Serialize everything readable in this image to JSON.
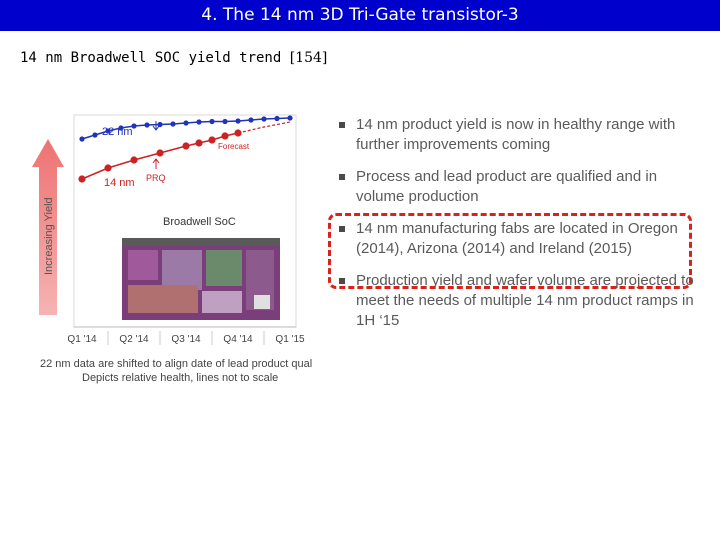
{
  "header": {
    "title": "4. The 14 nm 3D Tri-Gate transistor-3",
    "subtitle": "14 nm Broadwell SOC yield trend",
    "reference": "[154]"
  },
  "chart_data": {
    "type": "line",
    "title": "",
    "xlabel": "",
    "ylabel": "Increasing Yield",
    "categories": [
      "Q1 '14",
      "Q2 '14",
      "Q3 '14",
      "Q4 '14",
      "Q1 '15"
    ],
    "series": [
      {
        "name": "22 nm",
        "color": "#2233bb",
        "x": [
          0.0,
          0.25,
          0.5,
          0.75,
          1.0,
          1.25,
          1.5,
          1.75,
          2.0,
          2.25,
          2.5,
          2.75,
          3.0,
          3.25,
          3.5,
          3.75,
          4.0
        ],
        "y": [
          76,
          80,
          84,
          87,
          89,
          90,
          90.5,
          91,
          92,
          93,
          93.5,
          93.5,
          94,
          95,
          96,
          96.5,
          97
        ]
      },
      {
        "name": "14 nm",
        "color": "#cc2222",
        "x": [
          0.0,
          0.5,
          1.0,
          1.5,
          2.0,
          2.25,
          2.5,
          2.75,
          3.0
        ],
        "y": [
          36,
          47,
          55,
          62,
          69,
          72,
          75,
          79,
          82
        ]
      },
      {
        "name": "Forecast",
        "color": "#cc2222",
        "dashed": true,
        "x": [
          3.0,
          3.5,
          4.0
        ],
        "y": [
          82,
          88,
          93
        ]
      }
    ],
    "ylim": [
      0,
      100
    ],
    "annotations": {
      "forecast": "Forecast",
      "prq": "PRQ",
      "inset_label": "Broadwell SoC"
    },
    "notes": [
      "22 nm data are shifted to align date of lead product qual",
      "Depicts relative health, lines not to scale"
    ]
  },
  "bullets": [
    "14 nm product yield is now in healthy range with further improvements coming",
    "Process and lead product are qualified and in volume production",
    "14 nm manufacturing fabs are located in Oregon (2014), Arizona (2014) and Ireland (2015)",
    "Production yield and wafer volume are projected to meet the needs of multiple 14 nm product ramps in 1H ‘15"
  ],
  "colors": {
    "title_bar": "#0000cc",
    "highlight": "#d9221c",
    "arrow": "#ef8585"
  }
}
